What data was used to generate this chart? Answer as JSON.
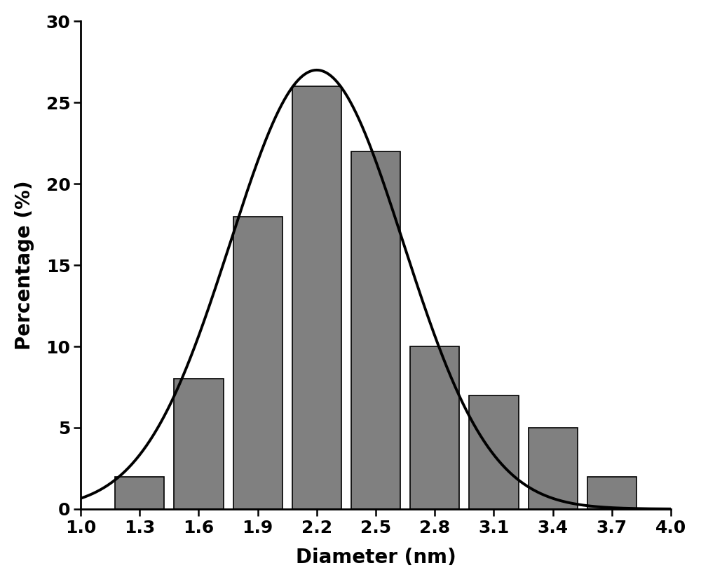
{
  "bar_centers": [
    1.3,
    1.6,
    1.9,
    2.2,
    2.5,
    2.8,
    3.1,
    3.4,
    3.7
  ],
  "bar_heights": [
    2,
    8,
    18,
    26,
    22,
    10,
    7,
    5,
    2
  ],
  "bar_width": 0.25,
  "bar_color": "#808080",
  "bar_edgecolor": "#000000",
  "curve_mean": 2.2,
  "curve_std": 0.44,
  "curve_amplitude": 27.0,
  "xlabel": "Diameter (nm)",
  "ylabel": "Percentage (%)",
  "xlim": [
    1.0,
    4.0
  ],
  "ylim": [
    0,
    30
  ],
  "xticks": [
    1.0,
    1.3,
    1.6,
    1.9,
    2.2,
    2.5,
    2.8,
    3.1,
    3.4,
    3.7,
    4.0
  ],
  "yticks": [
    0,
    5,
    10,
    15,
    20,
    25,
    30
  ],
  "xlabel_fontsize": 20,
  "ylabel_fontsize": 20,
  "tick_fontsize": 18,
  "line_width": 2.8,
  "background_color": "#ffffff",
  "spine_linewidth": 2.0
}
